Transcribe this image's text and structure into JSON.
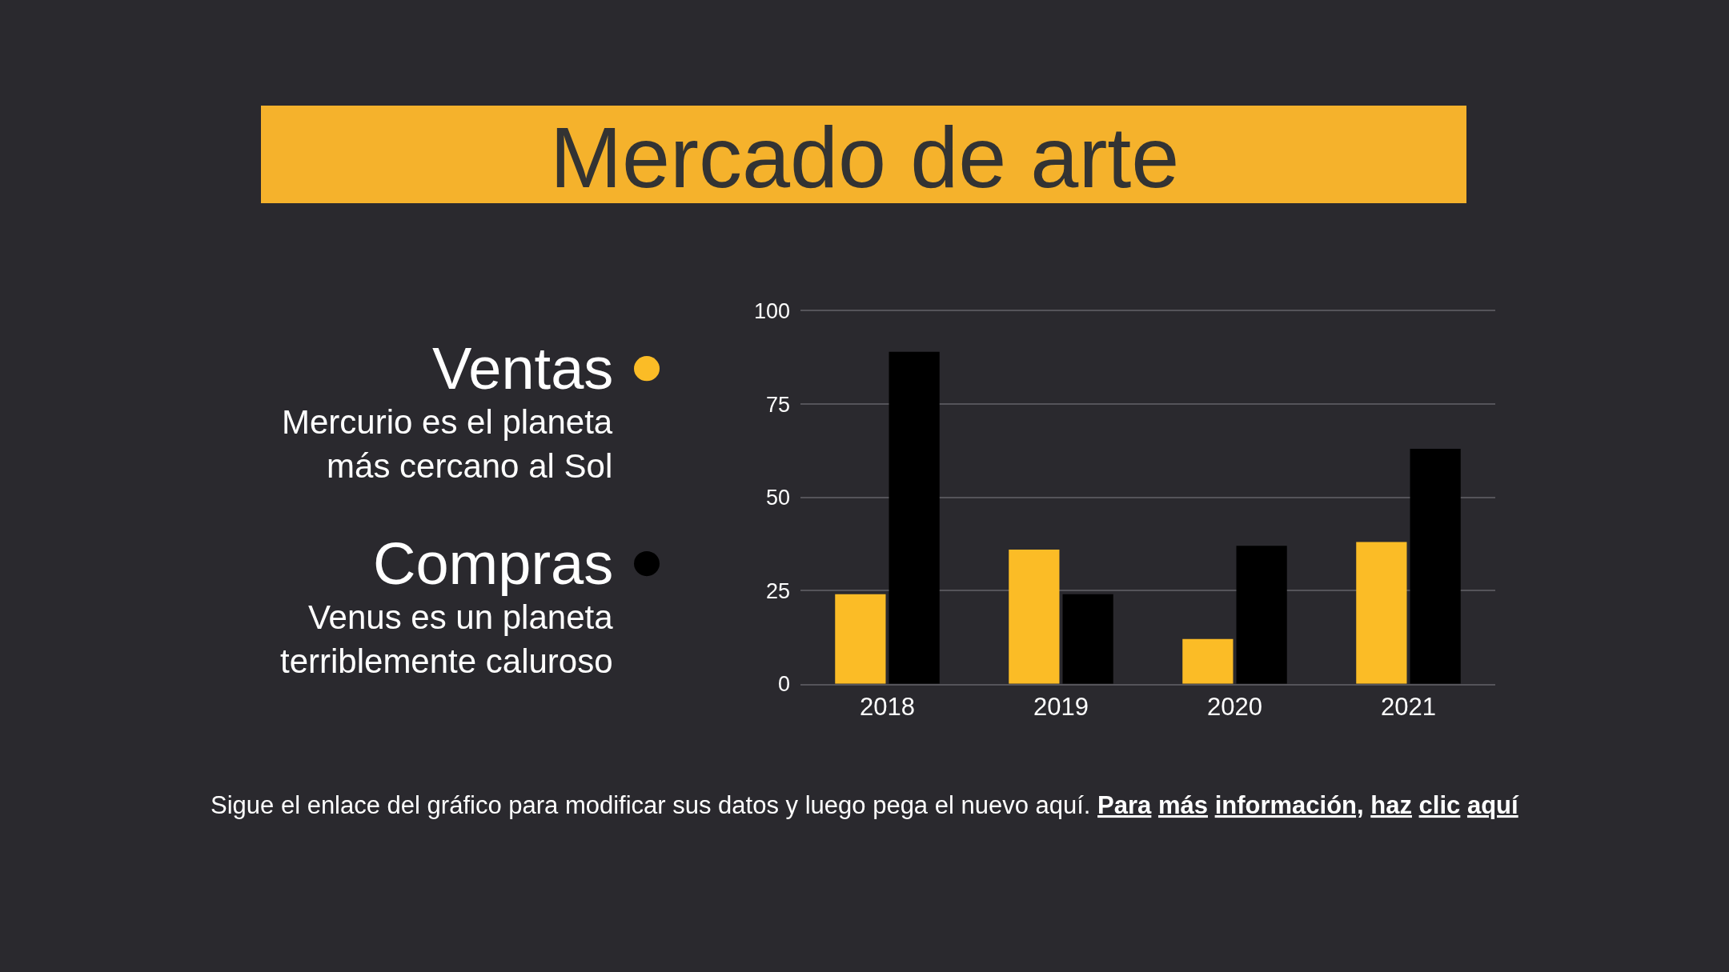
{
  "chart_data": {
    "type": "bar",
    "title": "Mercado de arte",
    "categories": [
      "2018",
      "2019",
      "2020",
      "2021"
    ],
    "series": [
      {
        "name": "Ventas",
        "color": "#fbbc26",
        "values": [
          24,
          36,
          12,
          38
        ]
      },
      {
        "name": "Compras",
        "color": "#000000",
        "values": [
          89,
          24,
          37,
          63
        ]
      }
    ],
    "ylim": [
      0,
      100
    ],
    "yticks": [
      0,
      25,
      50,
      75,
      100
    ],
    "grid": "y",
    "legend": "left",
    "annotations": [
      "Mercurio es el planeta\nmás cercano al Sol",
      "Venus es un planeta\nterriblemente caluroso",
      "Sigue el enlace del gráfico para modificar sus datos y luego pega el nuevo aquí.",
      "Para más información, haz clic aquí"
    ]
  }
}
